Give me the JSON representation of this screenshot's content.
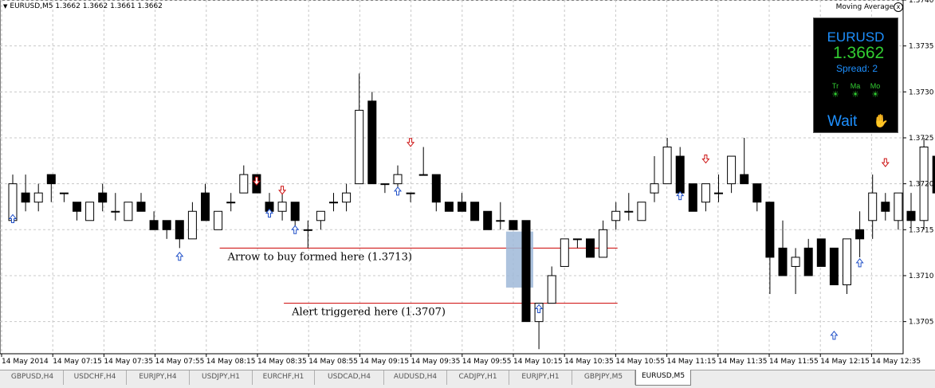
{
  "header": {
    "symbol_line": "EURUSD,M5  1.3662 1.3662 1.3661 1.3662",
    "indicator": "Moving Average",
    "close_symbol": "x"
  },
  "panel": {
    "symbol": "EURUSD",
    "price": "1.3662",
    "spread": "Spread: 2",
    "signals": [
      "Tr",
      "Ma",
      "Mo"
    ],
    "status": "Wait"
  },
  "tabs": [
    "GBPUSD,H4",
    "USDCHF,H4",
    "EURJPY,H4",
    "USDJPY,H1",
    "EURCHF,H1",
    "USDCAD,H4",
    "AUDUSD,H4",
    "CADJPY,H1",
    "EURJPY,H1",
    "GBPJPY,M5",
    "EURUSD,M5"
  ],
  "active_tab": 10,
  "colors": {
    "bull_fill": "#ffffff",
    "bear_fill": "#000000",
    "grid": "#c8c8c8",
    "level": "#cc0000",
    "up_arrow": "#2050c8",
    "down_arrow": "#cc1010",
    "highlight": "#9fb8d8"
  },
  "chart_data": {
    "type": "candlestick",
    "symbol": "EURUSD",
    "timeframe": "M5",
    "ylim": [
      1.37015,
      1.374
    ],
    "y_ticks": [
      1.3705,
      1.371,
      1.3715,
      1.372,
      1.3725,
      1.373,
      1.3735,
      1.374
    ],
    "x_tick_labels": [
      "14 May 2014",
      "14 May 07:15",
      "14 May 07:35",
      "14 May 07:55",
      "14 May 08:15",
      "14 May 08:35",
      "14 May 08:55",
      "14 May 09:15",
      "14 May 09:35",
      "14 May 09:55",
      "14 May 10:15",
      "14 May 10:35",
      "14 May 10:55",
      "14 May 11:15",
      "14 May 11:35",
      "14 May 11:55",
      "14 May 12:15",
      "14 May 12:35"
    ],
    "candles": [
      [
        1.3716,
        1.3721,
        1.3716,
        1.372
      ],
      [
        1.3719,
        1.3721,
        1.3717,
        1.3718
      ],
      [
        1.3718,
        1.372,
        1.3717,
        1.3719
      ],
      [
        1.3721,
        1.3721,
        1.3718,
        1.372
      ],
      [
        1.3719,
        1.3719,
        1.3718,
        1.3719
      ],
      [
        1.3718,
        1.3718,
        1.3716,
        1.3717
      ],
      [
        1.3716,
        1.3718,
        1.3716,
        1.3718
      ],
      [
        1.3719,
        1.372,
        1.3717,
        1.3718
      ],
      [
        1.3717,
        1.3719,
        1.3716,
        1.3717
      ],
      [
        1.3716,
        1.3718,
        1.3716,
        1.3718
      ],
      [
        1.3718,
        1.3719,
        1.3717,
        1.3717
      ],
      [
        1.3716,
        1.3717,
        1.3715,
        1.3715
      ],
      [
        1.3716,
        1.3716,
        1.3714,
        1.3715
      ],
      [
        1.3716,
        1.3716,
        1.3713,
        1.3714
      ],
      [
        1.3714,
        1.3718,
        1.3714,
        1.3717
      ],
      [
        1.3719,
        1.372,
        1.3716,
        1.3716
      ],
      [
        1.3715,
        1.3717,
        1.3715,
        1.3717
      ],
      [
        1.3718,
        1.3719,
        1.3717,
        1.3718
      ],
      [
        1.3719,
        1.3722,
        1.3719,
        1.3721
      ],
      [
        1.3721,
        1.3721,
        1.3719,
        1.3719
      ],
      [
        1.3718,
        1.3719,
        1.3717,
        1.3717
      ],
      [
        1.3717,
        1.3719,
        1.3716,
        1.3718
      ],
      [
        1.3718,
        1.3718,
        1.3715,
        1.3716
      ],
      [
        1.3715,
        1.3716,
        1.3713,
        1.3715
      ],
      [
        1.3716,
        1.3717,
        1.3715,
        1.3717
      ],
      [
        1.3718,
        1.3719,
        1.3717,
        1.3718
      ],
      [
        1.3718,
        1.372,
        1.3717,
        1.3719
      ],
      [
        1.372,
        1.3732,
        1.372,
        1.3728
      ],
      [
        1.3729,
        1.373,
        1.372,
        1.372
      ],
      [
        1.372,
        1.372,
        1.3719,
        1.372
      ],
      [
        1.372,
        1.3722,
        1.3719,
        1.3721
      ],
      [
        1.3719,
        1.3719,
        1.3718,
        1.3719
      ],
      [
        1.3721,
        1.3724,
        1.3721,
        1.3721
      ],
      [
        1.3721,
        1.3721,
        1.3717,
        1.3718
      ],
      [
        1.3718,
        1.3718,
        1.3717,
        1.3717
      ],
      [
        1.3718,
        1.3719,
        1.3717,
        1.3717
      ],
      [
        1.3718,
        1.3718,
        1.3716,
        1.3716
      ],
      [
        1.3717,
        1.3717,
        1.3715,
        1.3715
      ],
      [
        1.3716,
        1.3718,
        1.3715,
        1.3716
      ],
      [
        1.3716,
        1.3716,
        1.3715,
        1.3715
      ],
      [
        1.3716,
        1.3716,
        1.3705,
        1.3705
      ],
      [
        1.3705,
        1.3707,
        1.3702,
        1.3707
      ],
      [
        1.3707,
        1.3711,
        1.3707,
        1.371
      ],
      [
        1.3711,
        1.3714,
        1.3711,
        1.3714
      ],
      [
        1.3714,
        1.3714,
        1.3713,
        1.3714
      ],
      [
        1.3714,
        1.3714,
        1.3712,
        1.3712
      ],
      [
        1.3712,
        1.3716,
        1.3712,
        1.3715
      ],
      [
        1.3716,
        1.3718,
        1.3715,
        1.3717
      ],
      [
        1.3717,
        1.3719,
        1.3716,
        1.3717
      ],
      [
        1.3716,
        1.3718,
        1.3716,
        1.3718
      ],
      [
        1.3719,
        1.3723,
        1.3718,
        1.372
      ],
      [
        1.372,
        1.3725,
        1.372,
        1.3724
      ],
      [
        1.3723,
        1.3724,
        1.3719,
        1.3719
      ],
      [
        1.372,
        1.372,
        1.3717,
        1.3717
      ],
      [
        1.3718,
        1.372,
        1.3717,
        1.372
      ],
      [
        1.3719,
        1.3721,
        1.3718,
        1.3719
      ],
      [
        1.372,
        1.3723,
        1.3719,
        1.3723
      ],
      [
        1.3721,
        1.3725,
        1.372,
        1.372
      ],
      [
        1.372,
        1.372,
        1.3717,
        1.3718
      ],
      [
        1.3718,
        1.3718,
        1.3708,
        1.3712
      ],
      [
        1.3713,
        1.3716,
        1.371,
        1.371
      ],
      [
        1.3711,
        1.3713,
        1.3708,
        1.3712
      ],
      [
        1.3713,
        1.3714,
        1.371,
        1.371
      ],
      [
        1.3714,
        1.3714,
        1.3711,
        1.3711
      ],
      [
        1.3713,
        1.3713,
        1.3709,
        1.3709
      ],
      [
        1.3709,
        1.3714,
        1.3708,
        1.3714
      ],
      [
        1.3715,
        1.3717,
        1.3712,
        1.3714
      ],
      [
        1.3716,
        1.3721,
        1.3714,
        1.3719
      ],
      [
        1.3718,
        1.3719,
        1.3716,
        1.3717
      ],
      [
        1.3716,
        1.3719,
        1.3715,
        1.3719
      ],
      [
        1.3717,
        1.3719,
        1.3715,
        1.3716
      ],
      [
        1.3716,
        1.3725,
        1.3715,
        1.3724
      ],
      [
        1.3723,
        1.3724,
        1.3718,
        1.3719
      ],
      [
        1.3719,
        1.3719,
        1.3716,
        1.3717
      ],
      [
        1.3716,
        1.3716,
        1.3713,
        1.3714
      ],
      [
        1.3714,
        1.3714,
        1.3712,
        1.3712
      ],
      [
        1.3712,
        1.3712,
        1.3711,
        1.3711
      ]
    ],
    "buy_arrows": [
      {
        "i": 0,
        "y": 1.37162
      },
      {
        "i": 13,
        "y": 1.37121
      },
      {
        "i": 20,
        "y": 1.37168
      },
      {
        "i": 22,
        "y": 1.3715
      },
      {
        "i": 30,
        "y": 1.37192
      },
      {
        "i": 41,
        "y": 1.37064
      },
      {
        "i": 52,
        "y": 1.37187
      },
      {
        "i": 64,
        "y": 1.37035
      },
      {
        "i": 66,
        "y": 1.37114
      }
    ],
    "sell_arrows": [
      {
        "i": 19,
        "y": 1.37203
      },
      {
        "i": 21,
        "y": 1.37193
      },
      {
        "i": 31,
        "y": 1.37245
      },
      {
        "i": 54,
        "y": 1.37227
      },
      {
        "i": 68,
        "y": 1.37223
      }
    ],
    "levels": [
      {
        "price": 1.3713,
        "from": 16,
        "to": 47,
        "label": "Arrow to buy formed here (1.3713)"
      },
      {
        "price": 1.3707,
        "from": 21,
        "to": 47,
        "label": "Alert triggered here (1.3707)"
      }
    ],
    "highlight": {
      "from": 39,
      "to": 40,
      "top": 1.37148,
      "bottom": 1.37087
    }
  }
}
